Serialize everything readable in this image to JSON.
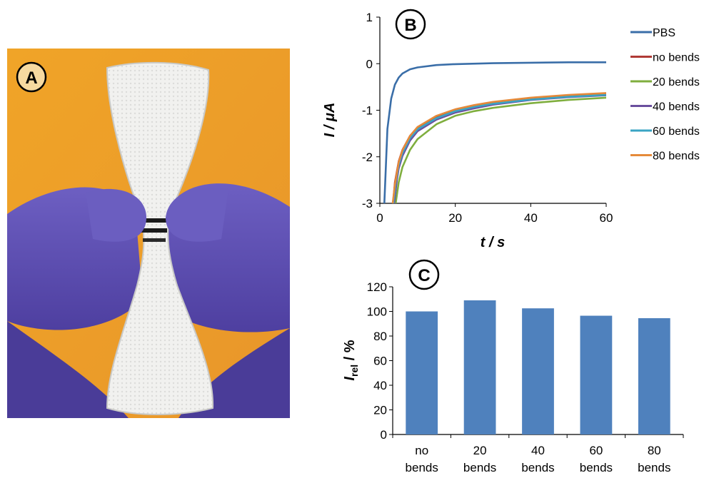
{
  "panels": {
    "A": {
      "label": "A"
    },
    "B": {
      "label": "B"
    },
    "C": {
      "label": "C"
    }
  },
  "chart_data": [
    {
      "panel": "B",
      "type": "line",
      "xlabel": "t / s",
      "ylabel": "I / μA",
      "xlim": [
        0,
        60
      ],
      "ylim": [
        -3,
        1
      ],
      "xticks": [
        0,
        20,
        40,
        60
      ],
      "yticks": [
        -3,
        -2,
        -1,
        0,
        1
      ],
      "grid": false,
      "legend": "right",
      "series": [
        {
          "name": "PBS",
          "color": "#3a6ea8",
          "x": [
            1.2,
            2,
            3,
            4,
            5,
            6,
            8,
            10,
            15,
            20,
            30,
            40,
            50,
            60
          ],
          "y": [
            -3.0,
            -1.4,
            -0.75,
            -0.45,
            -0.3,
            -0.21,
            -0.12,
            -0.08,
            -0.03,
            -0.01,
            0.01,
            0.02,
            0.03,
            0.03
          ]
        },
        {
          "name": "no bends",
          "color": "#b03a36",
          "x": [
            3.5,
            4,
            5,
            6,
            8,
            10,
            15,
            20,
            25,
            30,
            40,
            50,
            60
          ],
          "y": [
            -3.0,
            -2.55,
            -2.1,
            -1.85,
            -1.55,
            -1.38,
            -1.15,
            -1.0,
            -0.92,
            -0.85,
            -0.76,
            -0.7,
            -0.66
          ]
        },
        {
          "name": "20 bends",
          "color": "#7fae3e",
          "x": [
            4.2,
            5,
            6,
            8,
            10,
            15,
            20,
            25,
            30,
            40,
            50,
            60
          ],
          "y": [
            -3.0,
            -2.55,
            -2.22,
            -1.85,
            -1.62,
            -1.3,
            -1.12,
            -1.02,
            -0.95,
            -0.85,
            -0.78,
            -0.73
          ]
        },
        {
          "name": "40 bends",
          "color": "#6a4f9e",
          "x": [
            3.8,
            4.5,
            5,
            6,
            8,
            10,
            15,
            20,
            25,
            30,
            40,
            50,
            60
          ],
          "y": [
            -3.0,
            -2.5,
            -2.25,
            -1.98,
            -1.65,
            -1.45,
            -1.2,
            -1.05,
            -0.96,
            -0.88,
            -0.78,
            -0.72,
            -0.68
          ]
        },
        {
          "name": "60 bends",
          "color": "#3aa4c4",
          "x": [
            3.6,
            4.2,
            5,
            6,
            8,
            10,
            15,
            20,
            25,
            30,
            40,
            50,
            60
          ],
          "y": [
            -3.0,
            -2.55,
            -2.18,
            -1.92,
            -1.6,
            -1.41,
            -1.17,
            -1.02,
            -0.93,
            -0.86,
            -0.77,
            -0.71,
            -0.67
          ]
        },
        {
          "name": "80 bends",
          "color": "#e58a3a",
          "x": [
            3.4,
            4,
            5,
            6,
            8,
            10,
            15,
            20,
            25,
            30,
            40,
            50,
            60
          ],
          "y": [
            -3.0,
            -2.6,
            -2.12,
            -1.86,
            -1.55,
            -1.36,
            -1.12,
            -0.98,
            -0.89,
            -0.82,
            -0.73,
            -0.67,
            -0.63
          ]
        }
      ]
    },
    {
      "panel": "C",
      "type": "bar",
      "categories": [
        [
          "no",
          "bends"
        ],
        [
          "20",
          "bends"
        ],
        [
          "40",
          "bends"
        ],
        [
          "60",
          "bends"
        ],
        [
          "80",
          "bends"
        ]
      ],
      "values": [
        100,
        109,
        102.5,
        96.5,
        94.5
      ],
      "color": "#4f81bd",
      "ylabel_main": "I",
      "ylabel_sub": "rel",
      "ylabel_rest": " / %",
      "ylim": [
        0,
        120
      ],
      "yticks": [
        0,
        20,
        40,
        60,
        80,
        100,
        120
      ],
      "grid": false
    }
  ]
}
